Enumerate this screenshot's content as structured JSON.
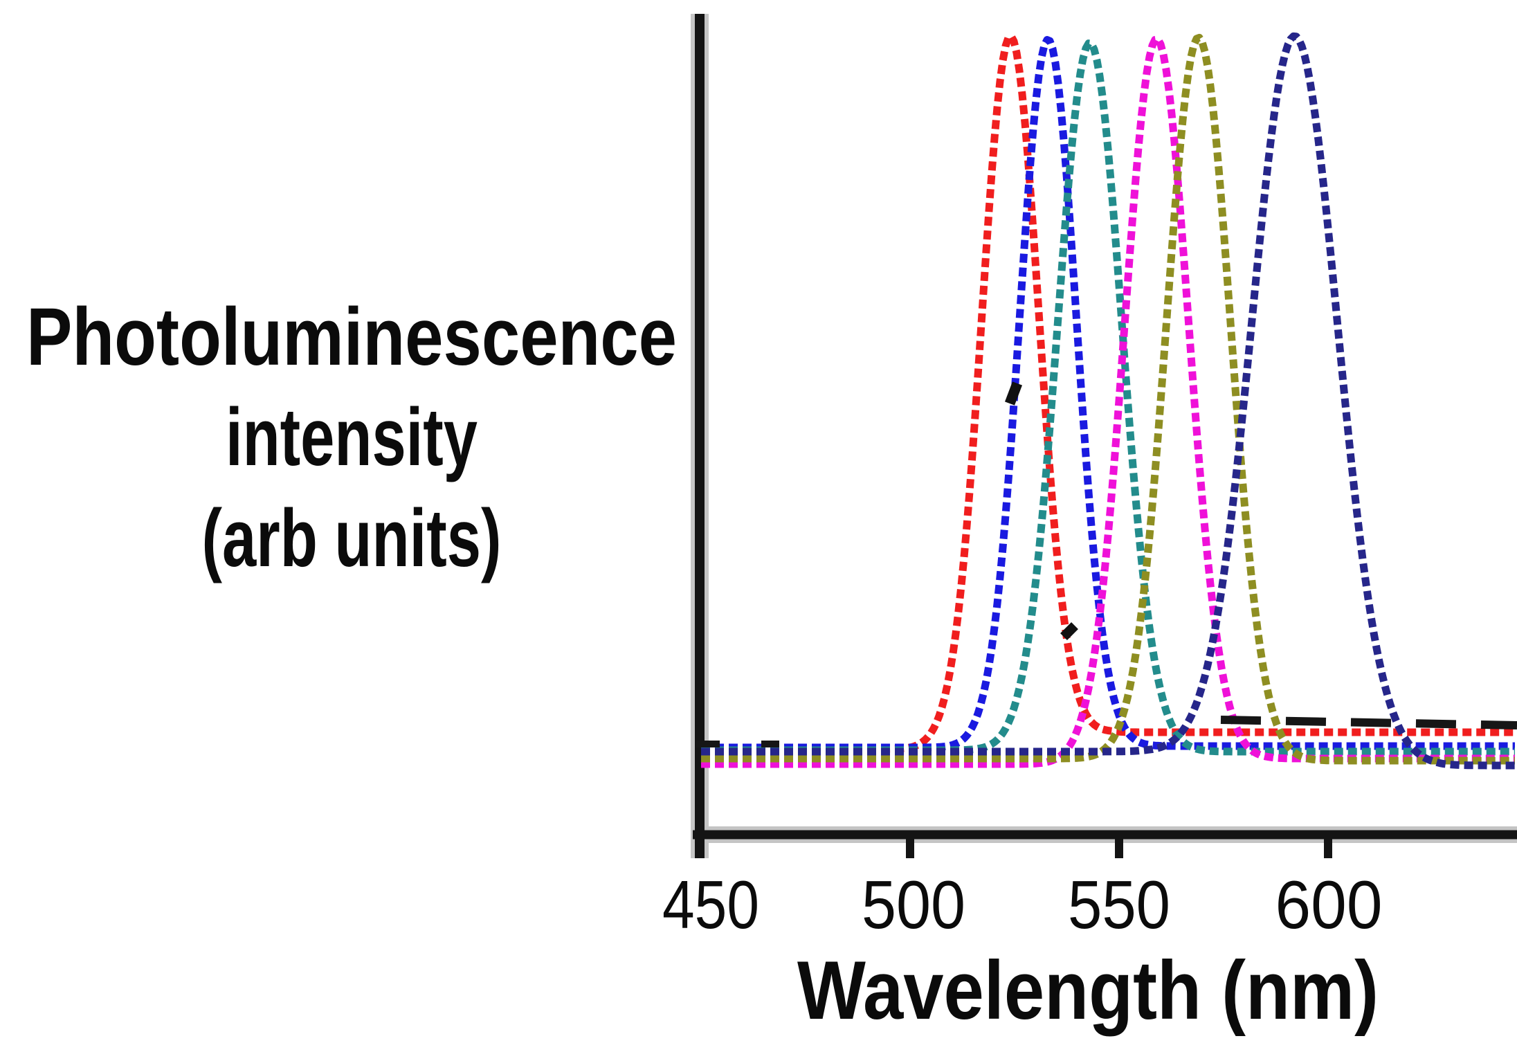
{
  "figure": {
    "background": "#ffffff",
    "ylabel_lines": [
      "Photoluminescence",
      "intensity",
      "(arb units)"
    ],
    "xlabel": "Wavelength (nm)",
    "x_tick_labels": [
      "450",
      "500",
      "550",
      "600"
    ]
  },
  "chart_data": {
    "type": "line",
    "title": "",
    "xlabel": "Wavelength (nm)",
    "ylabel": "Photoluminescence intensity (arb units)",
    "x_axis": {
      "unit": "nm",
      "ticks": [
        450,
        500,
        550,
        600
      ],
      "range": [
        450,
        645
      ]
    },
    "y_axis": {
      "label": "Photoluminescence intensity (arb units)",
      "unit": "arb units",
      "ticks": [],
      "range": [
        0,
        1.05
      ]
    },
    "grid": false,
    "legend": null,
    "line_style": "dashed",
    "axis_color": "#151515",
    "series": [
      {
        "name": "pl-spectrum-524nm",
        "color": "#f01e1e",
        "peak_nm": 524,
        "fwhm_nm": 16,
        "rel_intensity": 1.0
      },
      {
        "name": "pl-spectrum-533nm",
        "color": "#1a1ae0",
        "peak_nm": 533,
        "fwhm_nm": 16,
        "rel_intensity": 0.99
      },
      {
        "name": "pl-spectrum-543nm",
        "color": "#238c8c",
        "peak_nm": 543,
        "fwhm_nm": 18,
        "rel_intensity": 0.99
      },
      {
        "name": "pl-spectrum-559nm",
        "color": "#ef11d8",
        "peak_nm": 559,
        "fwhm_nm": 18,
        "rel_intensity": 0.99
      },
      {
        "name": "pl-spectrum-569nm",
        "color": "#8e8e22",
        "peak_nm": 569,
        "fwhm_nm": 18,
        "rel_intensity": 1.0
      },
      {
        "name": "pl-spectrum-592nm",
        "color": "#26268a",
        "peak_nm": 592,
        "fwhm_nm": 24,
        "rel_intensity": 1.0
      }
    ],
    "annotations": [
      "black dashed baseline segment at lower right",
      "short black baseline dashes near lower left",
      "two small black print artifacts on peak flanks"
    ]
  }
}
